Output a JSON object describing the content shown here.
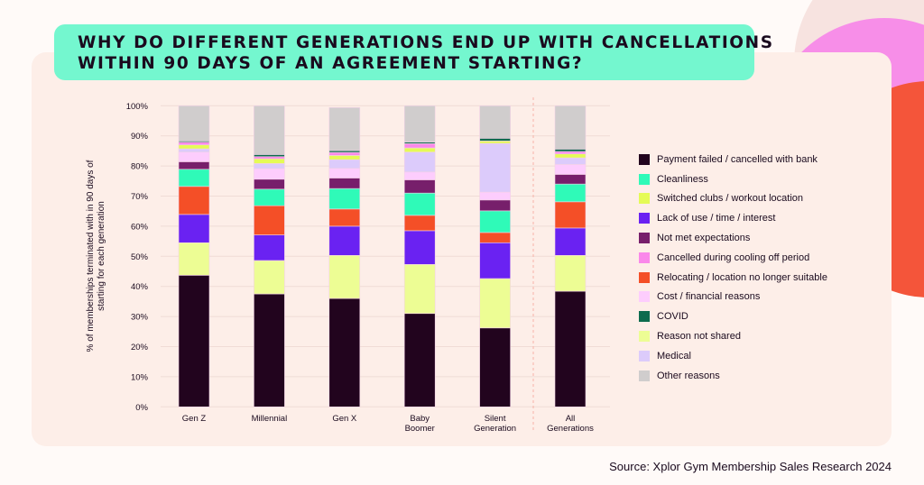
{
  "title_lines": [
    "WHY DO DIFFERENT GENERATIONS END UP WITH CANCELLATIONS",
    "WITHIN 90 DAYS OF AN AGREEMENT STARTING?"
  ],
  "source": "Source: Xplor Gym Membership Sales Research 2024",
  "chart_data": {
    "type": "bar",
    "stacked": true,
    "ylabel_lines": [
      "% of memberships terminated with in 90 days of",
      "starting for each generation"
    ],
    "ylim": [
      0,
      100
    ],
    "yticks": [
      "0%",
      "10%",
      "20%",
      "30%",
      "40%",
      "50%",
      "60%",
      "70%",
      "80%",
      "90%",
      "100%"
    ],
    "grid": true,
    "legend_position": "right",
    "categories": [
      [
        "Gen Z"
      ],
      [
        "Millennial"
      ],
      [
        "Gen X"
      ],
      [
        "Baby",
        "Boomer"
      ],
      [
        "Silent",
        "Generation"
      ],
      [
        "All",
        "Generations"
      ]
    ],
    "series": [
      {
        "name": "Payment failed / cancelled with bank",
        "color": "#22041e",
        "values": [
          43.7,
          37.5,
          36.0,
          31.0,
          26.2,
          38.4
        ]
      },
      {
        "name": "Reason not shared",
        "color": "#edfd94",
        "values": [
          10.8,
          11.1,
          14.3,
          16.3,
          16.4,
          11.9
        ]
      },
      {
        "name": "Lack of use / time / interest",
        "color": "#6a22f2",
        "values": [
          9.4,
          8.5,
          9.7,
          11.2,
          11.9,
          9.1
        ]
      },
      {
        "name": "Relocating / location no longer suitable",
        "color": "#f44f27",
        "values": [
          9.3,
          9.7,
          5.7,
          5.1,
          3.4,
          8.7
        ]
      },
      {
        "name": "Cleanliness",
        "color": "#2ffab8",
        "values": [
          5.7,
          5.5,
          6.8,
          7.4,
          7.2,
          5.9
        ]
      },
      {
        "name": "Not met expectations",
        "color": "#771f6b",
        "values": [
          2.5,
          3.3,
          3.5,
          4.4,
          3.6,
          3.2
        ]
      },
      {
        "name": "Cost / financial reasons",
        "color": "#fdcdfd",
        "values": [
          3.2,
          3.5,
          3.2,
          2.6,
          2.6,
          3.3
        ]
      },
      {
        "name": "Medical",
        "color": "#dccbfb",
        "values": [
          1.1,
          1.7,
          2.9,
          6.6,
          16.2,
          2.2
        ]
      },
      {
        "name": "Switched clubs / workout location",
        "color": "#e5fb56",
        "values": [
          1.3,
          1.6,
          1.4,
          1.4,
          0.8,
          1.3
        ]
      },
      {
        "name": "Cancelled during cooling off period",
        "color": "#fa88ea",
        "values": [
          0.9,
          0.7,
          1.0,
          1.4,
          0.0,
          0.8
        ]
      },
      {
        "name": "COVID",
        "color": "#0d6b4e",
        "values": [
          0.4,
          0.7,
          0.6,
          0.5,
          0.9,
          0.8
        ]
      },
      {
        "name": "Other reasons",
        "color": "#d0cdcd",
        "values": [
          11.7,
          16.2,
          14.3,
          12.1,
          10.8,
          14.4
        ]
      }
    ],
    "legend_order": [
      "Payment failed / cancelled with bank",
      "Cleanliness",
      "Switched clubs / workout location",
      "Lack of use / time / interest",
      "Not met expectations",
      "Cancelled during cooling off period",
      "Relocating / location no longer suitable",
      "Cost / financial reasons",
      "COVID",
      "Reason not shared",
      "Medical",
      "Other reasons"
    ]
  }
}
